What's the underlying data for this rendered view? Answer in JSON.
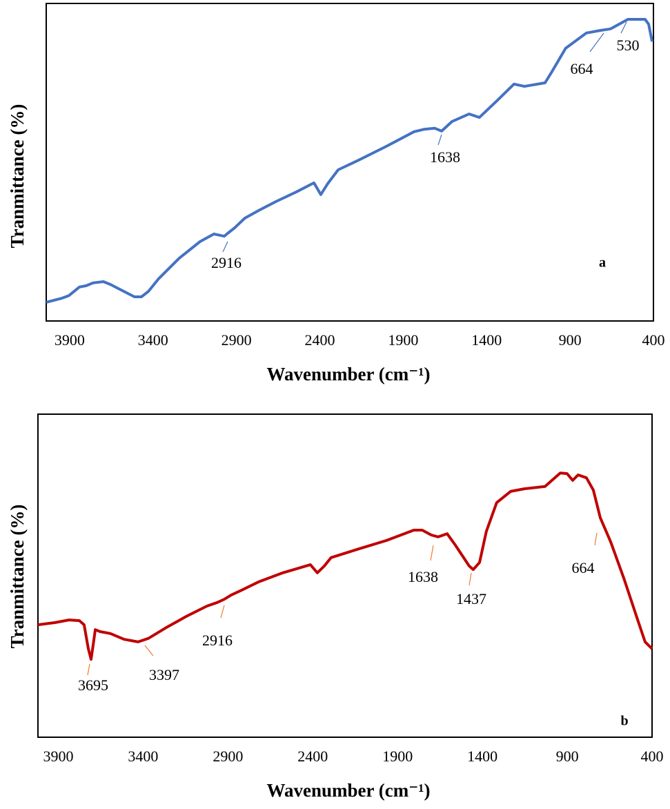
{
  "chart_data": [
    {
      "type": "line",
      "panel_label": "a",
      "x_label": "Wavenumber (cm⁻¹)",
      "y_label": "Tranmittance (%)",
      "xlim": [
        4040,
        400
      ],
      "xticks": [
        3900,
        3400,
        2900,
        2400,
        1900,
        1400,
        900,
        400
      ],
      "ylim": [
        0,
        100
      ],
      "series": [
        {
          "color": "#4472c4",
          "x": [
            4040,
            3945,
            3904,
            3841,
            3800,
            3759,
            3697,
            3655,
            3593,
            3511,
            3469,
            3428,
            3366,
            3242,
            3118,
            3035,
            2973,
            2952,
            2911,
            2849,
            2766,
            2663,
            2539,
            2435,
            2394,
            2352,
            2290,
            2166,
            2001,
            1835,
            1773,
            1711,
            1670,
            1608,
            1505,
            1443,
            1339,
            1236,
            1174,
            1050,
            1009,
            926,
            802,
            719,
            657,
            553,
            450,
            429,
            408
          ],
          "values": [
            5.9,
            7.2,
            8.0,
            10.7,
            11.1,
            12.0,
            12.4,
            11.5,
            9.8,
            7.6,
            7.6,
            9.3,
            13.3,
            19.8,
            25.0,
            27.4,
            26.7,
            27.6,
            29.3,
            32.4,
            34.8,
            37.6,
            40.7,
            43.5,
            39.8,
            43.3,
            47.6,
            50.7,
            55.0,
            59.6,
            60.4,
            60.7,
            59.8,
            62.8,
            65.2,
            64.1,
            69.3,
            74.6,
            73.9,
            75.0,
            78.5,
            85.9,
            90.7,
            91.5,
            92.0,
            95.0,
            95.0,
            93.5,
            88.0
          ]
        }
      ],
      "annotations": [
        2916,
        1638,
        664,
        530
      ],
      "annotation_color": "#4472c4"
    },
    {
      "type": "line",
      "panel_label": "b",
      "x_label": "Wavenumber (cm⁻¹)",
      "y_label": "Tranmittance (%)",
      "xlim": [
        4020,
        400
      ],
      "xticks": [
        3900,
        3400,
        2900,
        2400,
        1900,
        1400,
        900,
        400
      ],
      "ylim": [
        0,
        100
      ],
      "series": [
        {
          "color": "#c00000",
          "x": [
            4020,
            3918,
            3837,
            3776,
            3748,
            3723,
            3707,
            3695,
            3682,
            3654,
            3593,
            3512,
            3430,
            3369,
            3268,
            3146,
            3024,
            2963,
            2922,
            2881,
            2820,
            2719,
            2576,
            2414,
            2373,
            2332,
            2292,
            2129,
            1966,
            1804,
            1755,
            1702,
            1661,
            1608,
            1559,
            1478,
            1454,
            1417,
            1377,
            1316,
            1234,
            1153,
            1031,
            990,
            941,
            901,
            868,
            836,
            787,
            746,
            705,
            644,
            563,
            482,
            441,
            400
          ],
          "values": [
            34.8,
            35.5,
            36.3,
            36.1,
            34.8,
            27.4,
            24.1,
            28.4,
            33.3,
            32.7,
            32.1,
            30.3,
            29.5,
            30.6,
            33.8,
            37.4,
            40.6,
            41.7,
            42.7,
            44.0,
            45.5,
            48.1,
            50.9,
            53.4,
            50.9,
            53.0,
            55.6,
            58.3,
            60.9,
            64.1,
            64.1,
            62.6,
            62.0,
            63.0,
            59.4,
            53.0,
            51.9,
            54.1,
            63.7,
            72.6,
            76.1,
            76.9,
            77.6,
            79.5,
            81.8,
            81.6,
            79.5,
            81.2,
            80.3,
            76.5,
            67.9,
            60.5,
            48.7,
            35.9,
            29.5,
            27.4
          ]
        }
      ],
      "annotations": [
        3695,
        3397,
        2916,
        1638,
        1437,
        664
      ],
      "annotation_color": "#ed7d31"
    }
  ]
}
